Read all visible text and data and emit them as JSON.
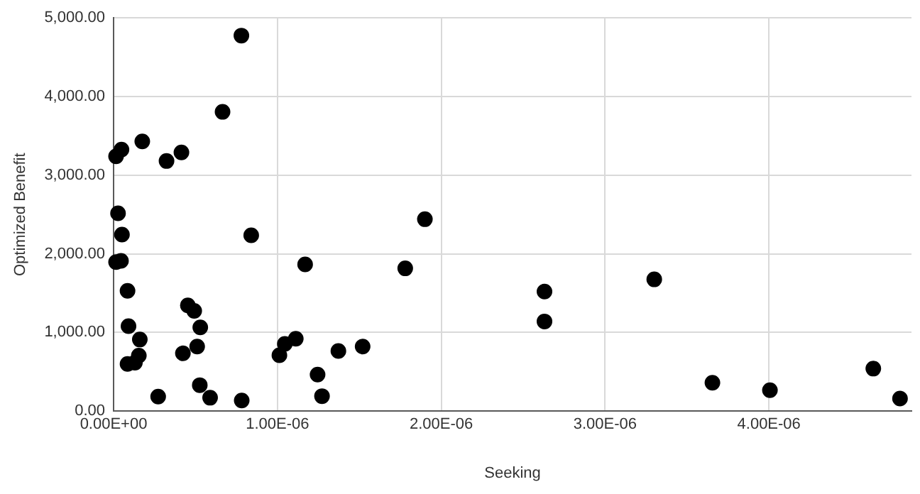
{
  "chart_data": {
    "type": "scatter",
    "xlabel": "Seeking",
    "ylabel": "Optimized Benefit",
    "x": [
      1.5e-08,
      4.8e-08,
      1.75e-07,
      3.23e-07,
      4.14e-07,
      6.65e-07,
      7.8e-07,
      2.7e-08,
      5.1e-08,
      1.5e-08,
      4.5e-08,
      8.4e-07,
      8.5e-08,
      1.169e-06,
      9.1e-08,
      1.6e-07,
      8.5e-08,
      1.3e-07,
      1.54e-07,
      2.72e-07,
      4.23e-07,
      4.53e-07,
      4.92e-07,
      5.29e-07,
      5.1e-07,
      5.26e-07,
      5.89e-07,
      7.82e-07,
      1.012e-06,
      1.045e-06,
      1.112e-06,
      1.245e-06,
      1.272e-06,
      1.372e-06,
      1.52e-06,
      1.78e-06,
      1.9e-06,
      2.63e-06,
      2.63e-06,
      3.3e-06,
      3.655e-06,
      4.006e-06,
      4.637e-06,
      4.8e-06
    ],
    "values": [
      3240,
      3325,
      3430,
      3180,
      3290,
      3805,
      4775,
      2515,
      2245,
      1895,
      1910,
      2235,
      1530,
      1865,
      1080,
      910,
      600,
      615,
      705,
      185,
      735,
      1345,
      1275,
      1065,
      820,
      330,
      170,
      135,
      710,
      855,
      920,
      465,
      190,
      765,
      820,
      1815,
      2440,
      1520,
      1140,
      1675,
      360,
      265,
      540,
      160
    ],
    "color": "#000000",
    "marker": "circle",
    "xlim": [
      0,
      4.87e-06
    ],
    "xticks": [
      {
        "value": 0,
        "label": "0.00E+00"
      },
      {
        "value": 1e-06,
        "label": "1.00E-06"
      },
      {
        "value": 2e-06,
        "label": "2.00E-06"
      },
      {
        "value": 3e-06,
        "label": "3.00E-06"
      },
      {
        "value": 4e-06,
        "label": "4.00E-06"
      }
    ],
    "ylim": [
      0,
      5000
    ],
    "yticks": [
      {
        "value": 0,
        "label": "0.00"
      },
      {
        "value": 1000,
        "label": "1,000.00"
      },
      {
        "value": 2000,
        "label": "2,000.00"
      },
      {
        "value": 3000,
        "label": "3,000.00"
      },
      {
        "value": 4000,
        "label": "4,000.00"
      },
      {
        "value": 5000,
        "label": "5,000.00"
      }
    ],
    "grid": true,
    "legend": false
  }
}
